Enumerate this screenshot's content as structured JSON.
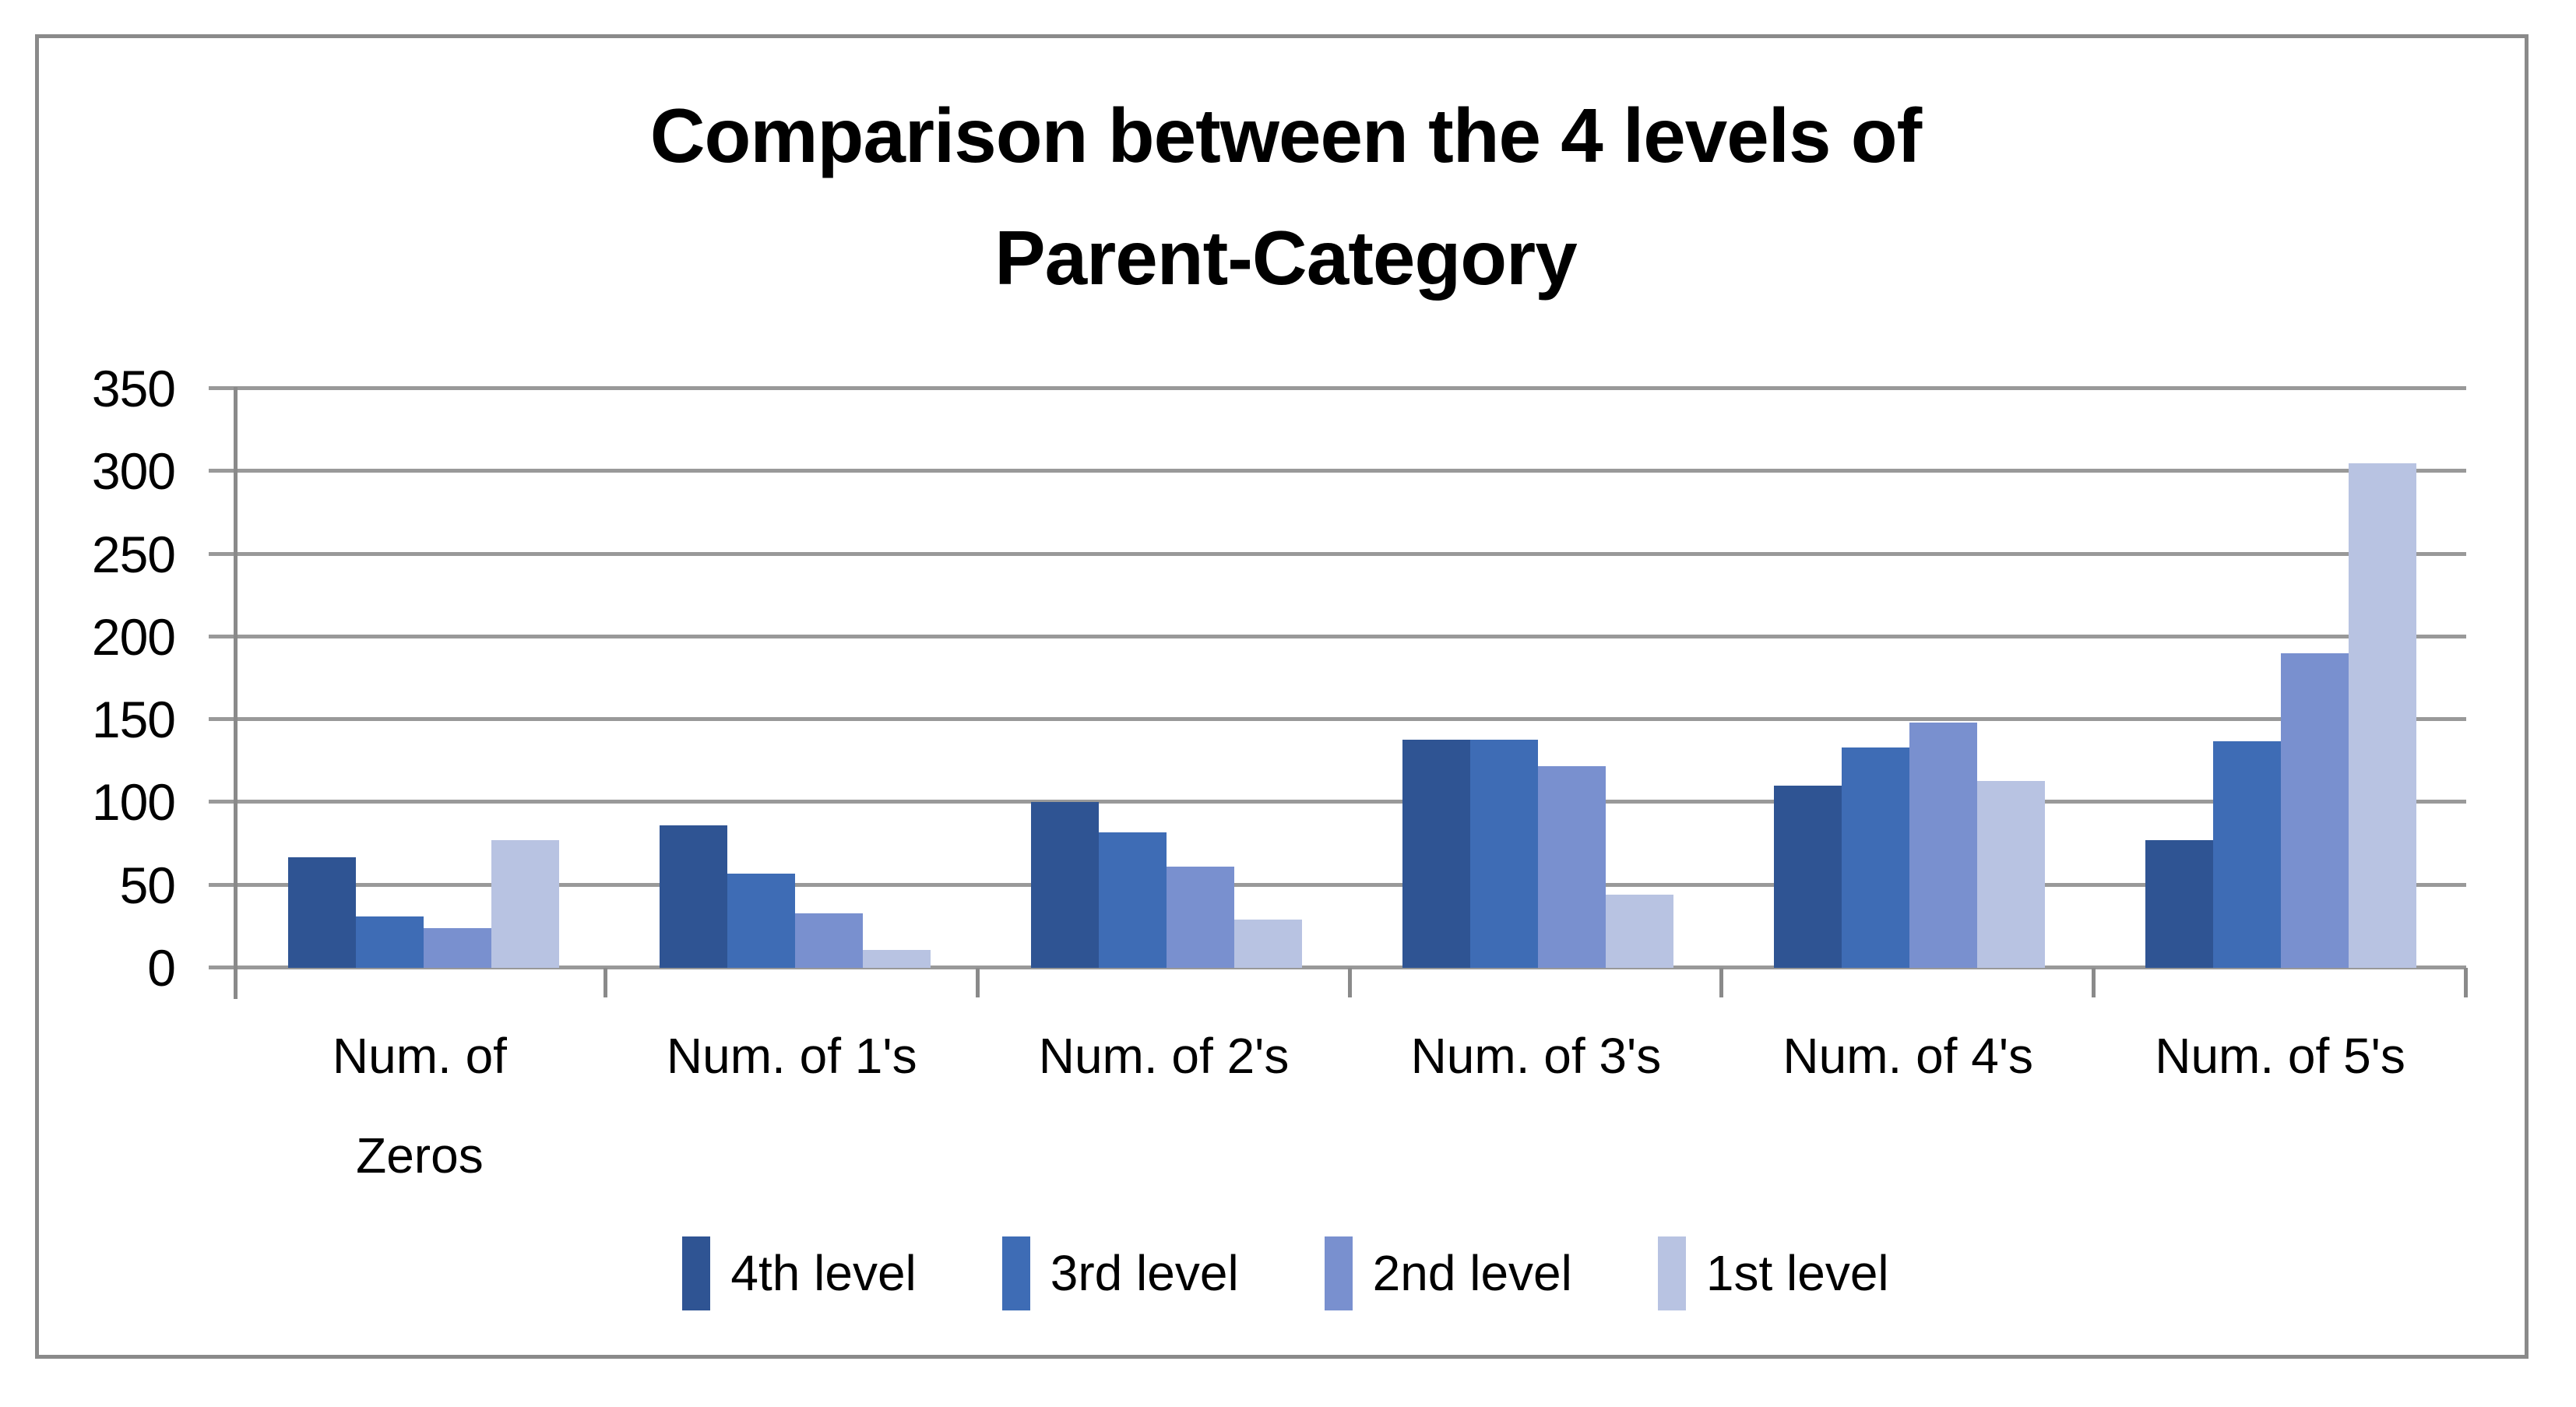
{
  "chart_data": {
    "type": "bar",
    "title": "Comparison between the 4 levels of Parent-Category",
    "title_lines": [
      "Comparison between the 4 levels of",
      "Parent-Category"
    ],
    "categories": [
      "Num. of Zeros",
      "Num. of 1's",
      "Num. of 2's",
      "Num. of 3's",
      "Num. of 4's",
      "Num. of 5's"
    ],
    "series": [
      {
        "name": "4th level",
        "color": "#2F5493",
        "values": [
          67,
          86,
          100,
          138,
          110,
          77
        ]
      },
      {
        "name": "3rd level",
        "color": "#3E6CB5",
        "values": [
          31,
          57,
          82,
          138,
          133,
          137
        ]
      },
      {
        "name": "2nd level",
        "color": "#7990CF",
        "values": [
          24,
          33,
          61,
          122,
          148,
          190
        ]
      },
      {
        "name": "1st level",
        "color": "#B8C3E2",
        "values": [
          77,
          11,
          29,
          44,
          113,
          305
        ]
      }
    ],
    "y_ticks": [
      0,
      50,
      100,
      150,
      200,
      250,
      300,
      350
    ],
    "ylim": [
      0,
      350
    ],
    "xlabel": "",
    "ylabel": "",
    "grid": true,
    "legend_position": "bottom"
  },
  "colors": {
    "background": "#FFFFFF",
    "frame_border": "#8A8A8A",
    "gridline": "#999999",
    "axis": "#8A8A8A",
    "text": "#000000"
  }
}
